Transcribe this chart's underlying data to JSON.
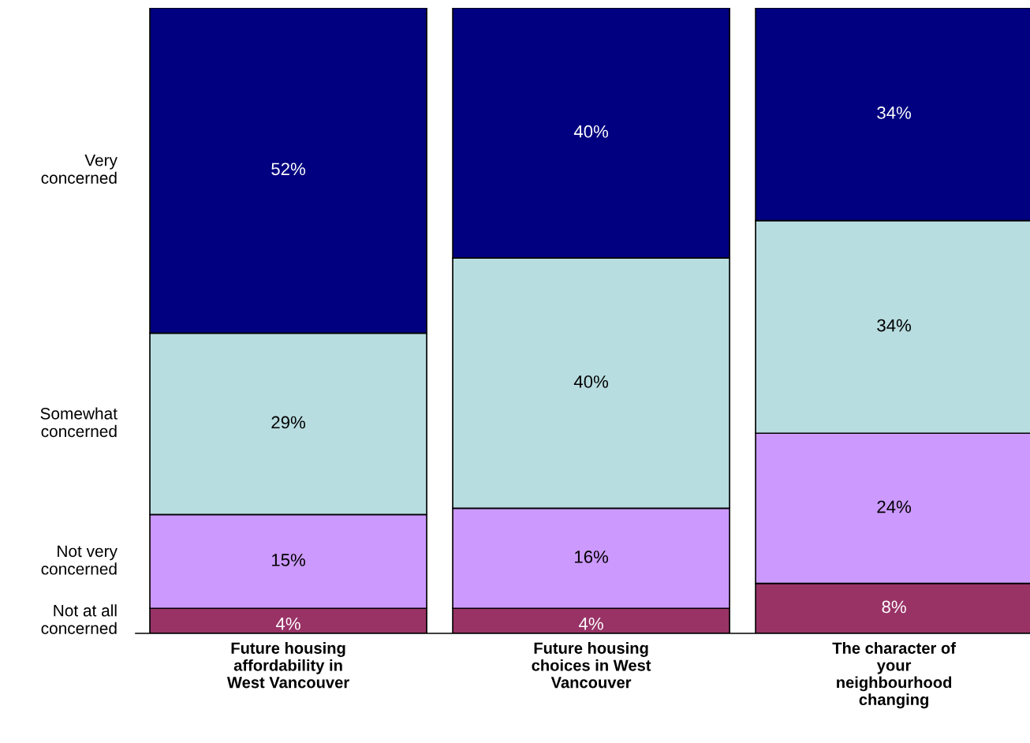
{
  "chart_data": {
    "type": "bar",
    "stacked": true,
    "categories": [
      "Future housing\naffordability in\nWest Vancouver",
      "Future housing\nchoices in West\nVancouver",
      "The character of\nyour\nneighbourhood\nchanging"
    ],
    "series": [
      {
        "name": "Not at all\nconcerned",
        "color": "#993366",
        "values": [
          4,
          4,
          8
        ],
        "value_labels": [
          "4%",
          "4%",
          "8%"
        ]
      },
      {
        "name": "Not very\nconcerned",
        "color": "#cc99ff",
        "values": [
          15,
          16,
          24
        ],
        "value_labels": [
          "15%",
          "16%",
          "24%"
        ]
      },
      {
        "name": "Somewhat\nconcerned",
        "color": "#b8dde0",
        "values": [
          29,
          40,
          34
        ],
        "value_labels": [
          "29%",
          "40%",
          "34%"
        ]
      },
      {
        "name": "Very\nconcerned",
        "color": "#000080",
        "values": [
          52,
          40,
          34
        ],
        "value_labels": [
          "52%",
          "40%",
          "34%"
        ]
      }
    ]
  }
}
